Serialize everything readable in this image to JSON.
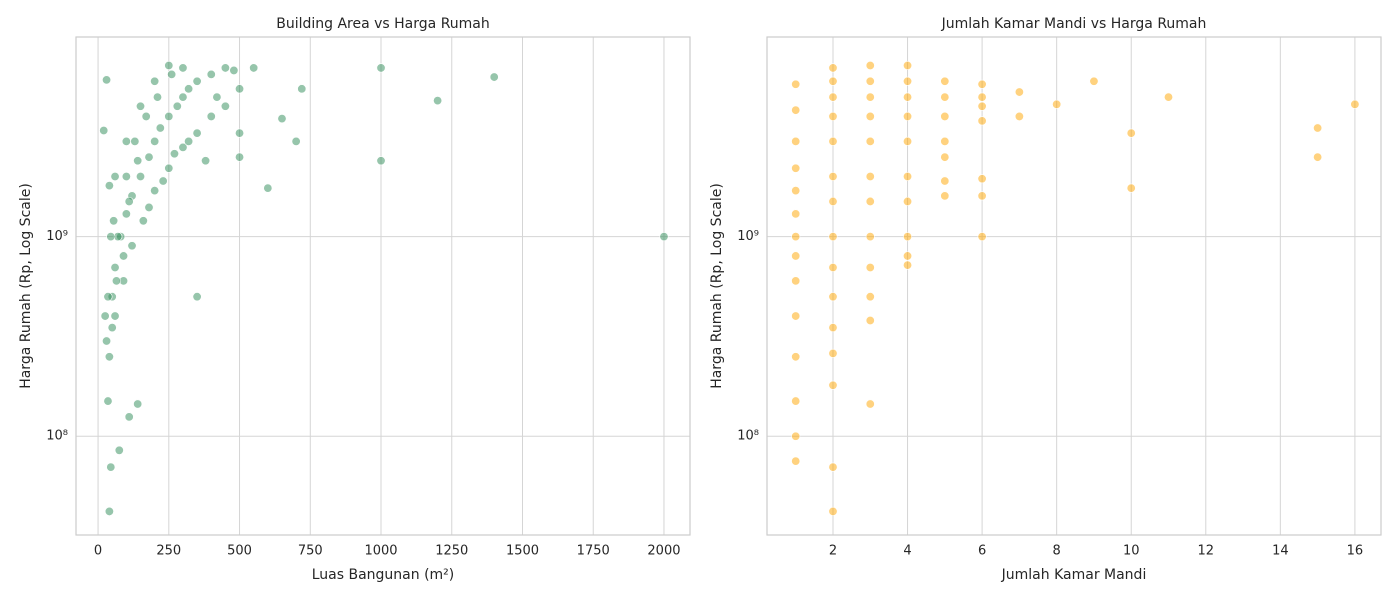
{
  "chart_data": [
    {
      "type": "scatter",
      "title": "Building Area vs Harga Rumah",
      "x_label": "Luas Bangunan (m²)",
      "y_label": "Harga Rumah (Rp, Log Scale)",
      "color": "#2e8b57",
      "log_y": true,
      "grid": true,
      "xlim": [
        -78,
        2092
      ],
      "xticks": [
        0,
        250,
        500,
        750,
        1000,
        1250,
        1500,
        1750,
        2000
      ],
      "ylim": [
        32000000,
        10000000000
      ],
      "yticks": [
        {
          "value": 100000000,
          "label": "10⁸"
        },
        {
          "value": 1000000000,
          "label": "10⁹"
        }
      ],
      "x": [
        2000,
        1400,
        1200,
        1000,
        1000,
        40,
        30,
        20,
        600,
        700,
        650,
        720,
        550,
        350,
        110,
        140,
        75,
        45,
        30,
        50,
        60,
        80,
        100,
        120,
        150,
        180,
        200,
        220,
        250,
        280,
        300,
        320,
        350,
        400,
        450,
        500,
        40,
        60,
        90,
        120,
        160,
        200,
        250,
        300,
        350,
        400,
        450,
        500,
        35,
        50,
        70,
        100,
        130,
        170,
        210,
        260,
        300,
        40,
        55,
        65,
        90,
        110,
        140,
        180,
        230,
        270,
        320,
        380,
        420,
        480,
        500,
        250,
        200,
        150,
        100,
        60,
        45,
        35,
        25
      ],
      "values": [
        1000000000,
        6300000000,
        4800000000,
        7000000000,
        2400000000,
        42000000,
        6100000000,
        3400000000,
        1750000000,
        3000000000,
        3900000000,
        5500000000,
        7000000000,
        500000000,
        125000000,
        145000000,
        85000000,
        70000000,
        300000000,
        500000000,
        700000000,
        1000000000,
        1300000000,
        1600000000,
        2000000000,
        2500000000,
        3000000000,
        3500000000,
        4000000000,
        4500000000,
        5000000000,
        5500000000,
        6000000000,
        6500000000,
        7000000000,
        5500000000,
        250000000,
        400000000,
        600000000,
        900000000,
        1200000000,
        1700000000,
        2200000000,
        2800000000,
        3300000000,
        4000000000,
        4500000000,
        3300000000,
        150000000,
        350000000,
        1000000000,
        2000000000,
        3000000000,
        4000000000,
        5000000000,
        6500000000,
        7000000000,
        1800000000,
        1200000000,
        600000000,
        800000000,
        1500000000,
        2400000000,
        1400000000,
        1900000000,
        2600000000,
        3000000000,
        2400000000,
        5000000000,
        6800000000,
        2500000000,
        7200000000,
        6000000000,
        4500000000,
        3000000000,
        2000000000,
        1000000000,
        500000000,
        400000000
      ]
    },
    {
      "type": "scatter",
      "title": "Jumlah Kamar Mandi vs Harga Rumah",
      "x_label": "Jumlah Kamar Mandi",
      "y_label": "Harga Rumah (Rp, Log Scale)",
      "color": "#ffa500",
      "log_y": true,
      "grid": true,
      "xlim": [
        0.23,
        16.7
      ],
      "xticks": [
        2,
        4,
        6,
        8,
        10,
        12,
        14,
        16
      ],
      "ylim": [
        32000000,
        10000000000
      ],
      "yticks": [
        {
          "value": 100000000,
          "label": "10⁸"
        },
        {
          "value": 1000000000,
          "label": "10⁹"
        }
      ],
      "x": [
        1,
        1,
        1,
        1,
        1,
        1,
        1,
        1,
        1,
        1,
        1,
        1,
        1,
        1,
        2,
        2,
        2,
        2,
        2,
        2,
        2,
        2,
        2,
        2,
        2,
        2,
        2,
        2,
        2,
        3,
        3,
        3,
        3,
        3,
        3,
        3,
        3,
        3,
        3,
        3,
        3,
        4,
        4,
        4,
        4,
        4,
        4,
        4,
        4,
        4,
        4,
        5,
        5,
        5,
        5,
        5,
        5,
        5,
        6,
        6,
        6,
        6,
        6,
        6,
        6,
        7,
        7,
        8,
        9,
        10,
        10,
        11,
        15,
        15,
        16
      ],
      "values": [
        75000000,
        100000000,
        150000000,
        250000000,
        400000000,
        600000000,
        800000000,
        1000000000,
        1300000000,
        1700000000,
        2200000000,
        3000000000,
        4300000000,
        5800000000,
        42000000,
        70000000,
        180000000,
        260000000,
        350000000,
        500000000,
        700000000,
        1000000000,
        1500000000,
        2000000000,
        3000000000,
        4000000000,
        5000000000,
        6000000000,
        7000000000,
        145000000,
        380000000,
        500000000,
        700000000,
        1000000000,
        1500000000,
        2000000000,
        3000000000,
        4000000000,
        5000000000,
        6000000000,
        7200000000,
        720000000,
        800000000,
        1000000000,
        1500000000,
        2000000000,
        3000000000,
        4000000000,
        5000000000,
        6000000000,
        7200000000,
        1600000000,
        1900000000,
        2500000000,
        3000000000,
        4000000000,
        5000000000,
        6000000000,
        1000000000,
        1600000000,
        1950000000,
        3800000000,
        4500000000,
        5000000000,
        5800000000,
        4000000000,
        5300000000,
        4600000000,
        6000000000,
        1750000000,
        3300000000,
        5000000000,
        2500000000,
        3500000000,
        4600000000
      ]
    }
  ]
}
